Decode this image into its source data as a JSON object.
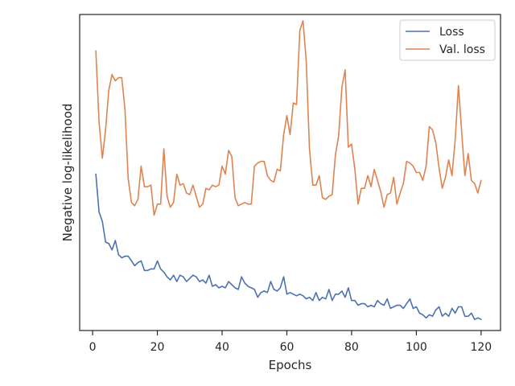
{
  "chart_data": {
    "type": "line",
    "title": "",
    "xlabel": "Epochs",
    "ylabel": "Negative log-likelihood",
    "xlim": [
      -4,
      126
    ],
    "ylim": [
      0,
      100
    ],
    "xticks": [
      0,
      20,
      40,
      60,
      80,
      100,
      120
    ],
    "y_tick_labels_shown": false,
    "grid": false,
    "legend_position": "upper right",
    "series": [
      {
        "name": "Loss",
        "color": "#4c72b0",
        "x": [
          1,
          2,
          3,
          4,
          5,
          6,
          7,
          8,
          9,
          10,
          11,
          12,
          13,
          14,
          15,
          16,
          17,
          18,
          19,
          20,
          21,
          22,
          23,
          24,
          25,
          26,
          27,
          28,
          29,
          30,
          31,
          32,
          33,
          34,
          35,
          36,
          37,
          38,
          39,
          40,
          41,
          42,
          43,
          44,
          45,
          46,
          47,
          48,
          49,
          50,
          51,
          52,
          53,
          54,
          55,
          56,
          57,
          58,
          59,
          60,
          61,
          62,
          63,
          64,
          65,
          66,
          67,
          68,
          69,
          70,
          71,
          72,
          73,
          74,
          75,
          76,
          77,
          78,
          79,
          80,
          81,
          82,
          83,
          84,
          85,
          86,
          87,
          88,
          89,
          90,
          91,
          92,
          93,
          94,
          95,
          96,
          97,
          98,
          99,
          100,
          101,
          102,
          103,
          104,
          105,
          106,
          107,
          108,
          109,
          110,
          111,
          112,
          113,
          114,
          115,
          116,
          117,
          118,
          119,
          120
        ],
        "values": [
          49.5,
          37.5,
          34.5,
          28,
          27.5,
          25.5,
          28.5,
          24,
          23,
          23.5,
          23.5,
          22,
          20.5,
          21.5,
          22,
          19,
          19,
          19.5,
          19.5,
          22,
          19.5,
          18.5,
          17,
          16,
          17.5,
          15.5,
          17.5,
          17,
          15.5,
          16.5,
          17.5,
          17,
          15.5,
          16,
          15,
          17.5,
          14,
          14.5,
          13.5,
          14,
          13.5,
          15.5,
          14.5,
          13.5,
          13,
          17,
          15,
          14,
          13.5,
          13,
          10.5,
          12,
          12.5,
          12,
          15.5,
          13,
          12.5,
          13.5,
          17,
          11.5,
          12,
          11.5,
          11,
          11.5,
          11,
          10,
          10.5,
          9.5,
          12,
          9.5,
          10.5,
          10,
          13,
          9.5,
          11.5,
          11.5,
          12.5,
          10.5,
          13.5,
          9.5,
          9.5,
          8,
          8.5,
          8.5,
          7.5,
          8,
          7.5,
          9.5,
          8.5,
          8,
          10,
          7,
          7.5,
          8,
          8,
          7,
          8.5,
          10,
          7,
          7.5,
          5.5,
          5,
          4,
          5,
          4.5,
          6.5,
          7.5,
          4.5,
          5.5,
          4.5,
          7,
          5.5,
          7.5,
          7.5,
          4.5,
          4.5,
          5.5,
          3.5,
          4,
          3.5
        ]
      },
      {
        "name": "Val. loss",
        "color": "#dd8452",
        "x": [
          1,
          2,
          3,
          4,
          5,
          6,
          7,
          8,
          9,
          10,
          11,
          12,
          13,
          14,
          15,
          16,
          17,
          18,
          19,
          20,
          21,
          22,
          23,
          24,
          25,
          26,
          27,
          28,
          29,
          30,
          31,
          32,
          33,
          34,
          35,
          36,
          37,
          38,
          39,
          40,
          41,
          42,
          43,
          44,
          45,
          46,
          47,
          48,
          49,
          50,
          51,
          52,
          53,
          54,
          55,
          56,
          57,
          58,
          59,
          60,
          61,
          62,
          63,
          64,
          65,
          66,
          67,
          68,
          69,
          70,
          71,
          72,
          73,
          74,
          75,
          76,
          77,
          78,
          79,
          80,
          81,
          82,
          83,
          84,
          85,
          86,
          87,
          88,
          89,
          90,
          91,
          92,
          93,
          94,
          95,
          96,
          97,
          98,
          99,
          100,
          101,
          102,
          103,
          104,
          105,
          106,
          107,
          108,
          109,
          110,
          111,
          112,
          113,
          114,
          115,
          116,
          117,
          118,
          119,
          120
        ],
        "values": [
          88.5,
          66,
          54.5,
          63.5,
          76,
          81,
          79,
          80,
          80,
          70,
          48,
          40.5,
          39.5,
          41.5,
          52,
          45.5,
          45.5,
          46,
          36.5,
          40,
          40,
          57.5,
          42.5,
          39,
          40.5,
          49.5,
          46,
          46.5,
          43.5,
          43,
          46,
          42.5,
          39,
          40,
          45,
          44.5,
          46,
          45.5,
          46,
          52,
          49.5,
          57,
          55,
          42,
          39.5,
          40,
          40.5,
          40,
          40,
          52,
          53,
          53.5,
          53.5,
          49,
          47.5,
          47,
          51,
          50.5,
          62,
          68,
          62,
          72,
          71.5,
          95,
          98,
          85,
          57.5,
          46,
          46,
          49,
          42,
          41.5,
          42.5,
          43,
          55.5,
          61.5,
          77,
          82.5,
          58,
          59,
          51,
          40,
          45,
          45,
          49,
          45.5,
          51,
          47.5,
          44,
          39,
          43,
          43.5,
          48.5,
          40,
          43.5,
          46.5,
          53.5,
          53,
          52,
          50,
          50,
          47.5,
          52,
          64.5,
          63.5,
          59.5,
          51.5,
          45,
          48.5,
          54,
          49,
          60.5,
          77.5,
          63,
          49,
          56,
          47.5,
          46.5,
          43.5,
          47.5
        ]
      }
    ]
  }
}
